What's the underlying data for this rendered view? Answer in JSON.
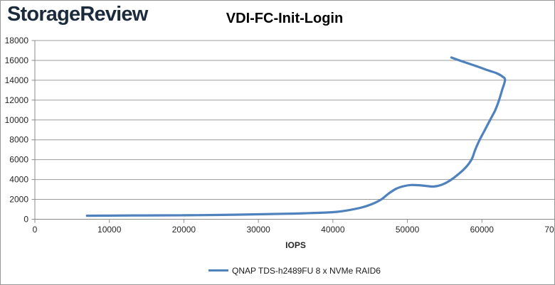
{
  "header": {
    "logo_text": "StorageReview",
    "title": "VDI-FC-Init-Login"
  },
  "chart_data": {
    "type": "line",
    "title": "VDI-FC-Init-Login",
    "xlabel": "IOPS",
    "ylabel": "",
    "xlim": [
      0,
      70000
    ],
    "ylim": [
      0,
      18000
    ],
    "x_ticks": [
      0,
      10000,
      20000,
      30000,
      40000,
      50000,
      60000,
      70000
    ],
    "y_ticks": [
      0,
      2000,
      4000,
      6000,
      8000,
      10000,
      12000,
      14000,
      16000,
      18000
    ],
    "grid": "horizontal-only",
    "legend_position": "bottom-center",
    "series": [
      {
        "name": "QNAP TDS-h2489FU 8 x NVMe RAID6",
        "color": "#4F81BD",
        "shape_note": "saturation latency curve; bends back over itself at max IOPS; points listed in path order",
        "points": [
          [
            7000,
            360
          ],
          [
            10000,
            365
          ],
          [
            15000,
            390
          ],
          [
            20000,
            400
          ],
          [
            25000,
            440
          ],
          [
            30000,
            500
          ],
          [
            34000,
            555
          ],
          [
            37000,
            625
          ],
          [
            40000,
            715
          ],
          [
            42000,
            900
          ],
          [
            44000,
            1210
          ],
          [
            45500,
            1610
          ],
          [
            46500,
            2000
          ],
          [
            47500,
            2600
          ],
          [
            48500,
            3080
          ],
          [
            49500,
            3330
          ],
          [
            50500,
            3450
          ],
          [
            51500,
            3430
          ],
          [
            52500,
            3360
          ],
          [
            53500,
            3290
          ],
          [
            54500,
            3440
          ],
          [
            55500,
            3800
          ],
          [
            56500,
            4330
          ],
          [
            57700,
            5120
          ],
          [
            58600,
            6000
          ],
          [
            59100,
            7000
          ],
          [
            59700,
            8000
          ],
          [
            60400,
            9000
          ],
          [
            61100,
            10000
          ],
          [
            61800,
            11000
          ],
          [
            62300,
            12000
          ],
          [
            62700,
            13000
          ],
          [
            63100,
            14000
          ],
          [
            62800,
            14350
          ],
          [
            62000,
            14700
          ],
          [
            60800,
            15000
          ],
          [
            59200,
            15430
          ],
          [
            57500,
            15860
          ],
          [
            55900,
            16290
          ]
        ]
      }
    ]
  },
  "colors": {
    "logo": "#1c2b3b",
    "title_text": "#000000",
    "tick_label": "#262626",
    "grid_line": "#9b9b9b",
    "axis_line": "#8b8b8b",
    "series1": "#4F81BD",
    "frame_border": "#979797",
    "background": "#ffffff"
  }
}
